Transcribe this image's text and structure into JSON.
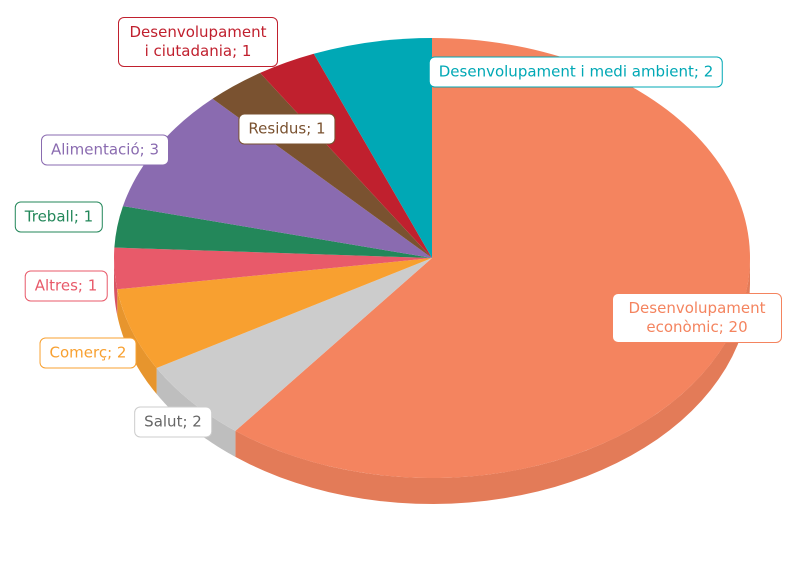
{
  "chart_data": {
    "type": "pie3d",
    "categories": [
      "Desenvolupament econòmic",
      "Salut",
      "Comerç",
      "Altres",
      "Treball",
      "Alimentació",
      "Residus",
      "Desenvolupament i ciutadania",
      "Desenvolupament i medi ambient"
    ],
    "values": [
      20,
      2,
      2,
      1,
      1,
      3,
      1,
      1,
      2
    ],
    "value_labels": [
      "Desenvolupament econòmic; 20",
      "Salut; 2",
      "Comerç; 2",
      "Altres; 1",
      "Treball; 1",
      "Alimentació; 3",
      "Residus; 1",
      "Desenvolupament i ciutadania; 1",
      "Desenvolupament i medi ambient; 2"
    ],
    "colors": [
      "#f4845f",
      "#cccccc",
      "#f8a030",
      "#e85a6a",
      "#23875a",
      "#8a6bb0",
      "#7a5230",
      "#c0202e",
      "#00a8b5"
    ]
  }
}
